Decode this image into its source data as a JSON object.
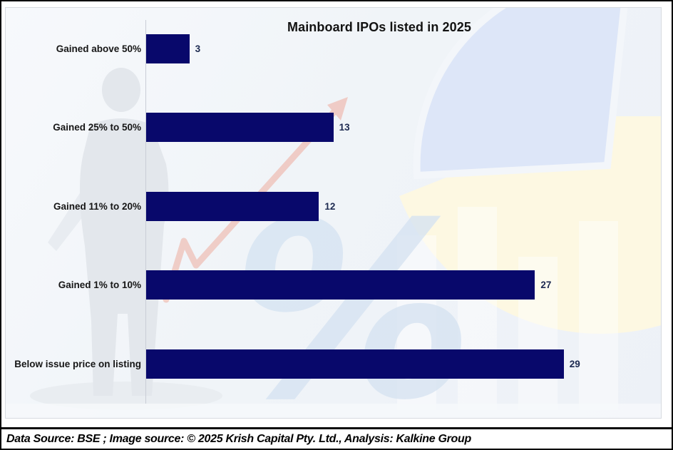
{
  "window": {
    "background_color": "#ffffff",
    "border_color": "#000000",
    "panel_color": "#f0f4f8"
  },
  "chart_data": {
    "type": "bar",
    "orientation": "horizontal",
    "title": "Mainboard IPOs listed in 2025",
    "categories": [
      "Gained above 50%",
      "Gained 25% to 50%",
      "Gained 11% to 20%",
      "Gained 1% to 10%",
      "Below issue price on listing"
    ],
    "values": [
      3,
      13,
      12,
      27,
      29
    ],
    "data_labels": true,
    "grid": false,
    "legend": false,
    "xlim": [
      0,
      36
    ],
    "bar_color": "#08086b",
    "category_label_color": "#161616",
    "value_label_color": "#1c2950",
    "title_color": "#121212"
  },
  "watermarks": {
    "businessman_silhouette_color": "#e3e7ec",
    "pie_slice_blue": "#dde6f8",
    "pie_slice_yellow": "#fdf8e2",
    "trend_arrow_color": "#efc5be",
    "percent_sign_color": "#d7e4f2"
  },
  "footer": {
    "text": "Data Source: BSE ; Image source: © 2025 Krish Capital Pty. Ltd., Analysis: Kalkine Group"
  }
}
